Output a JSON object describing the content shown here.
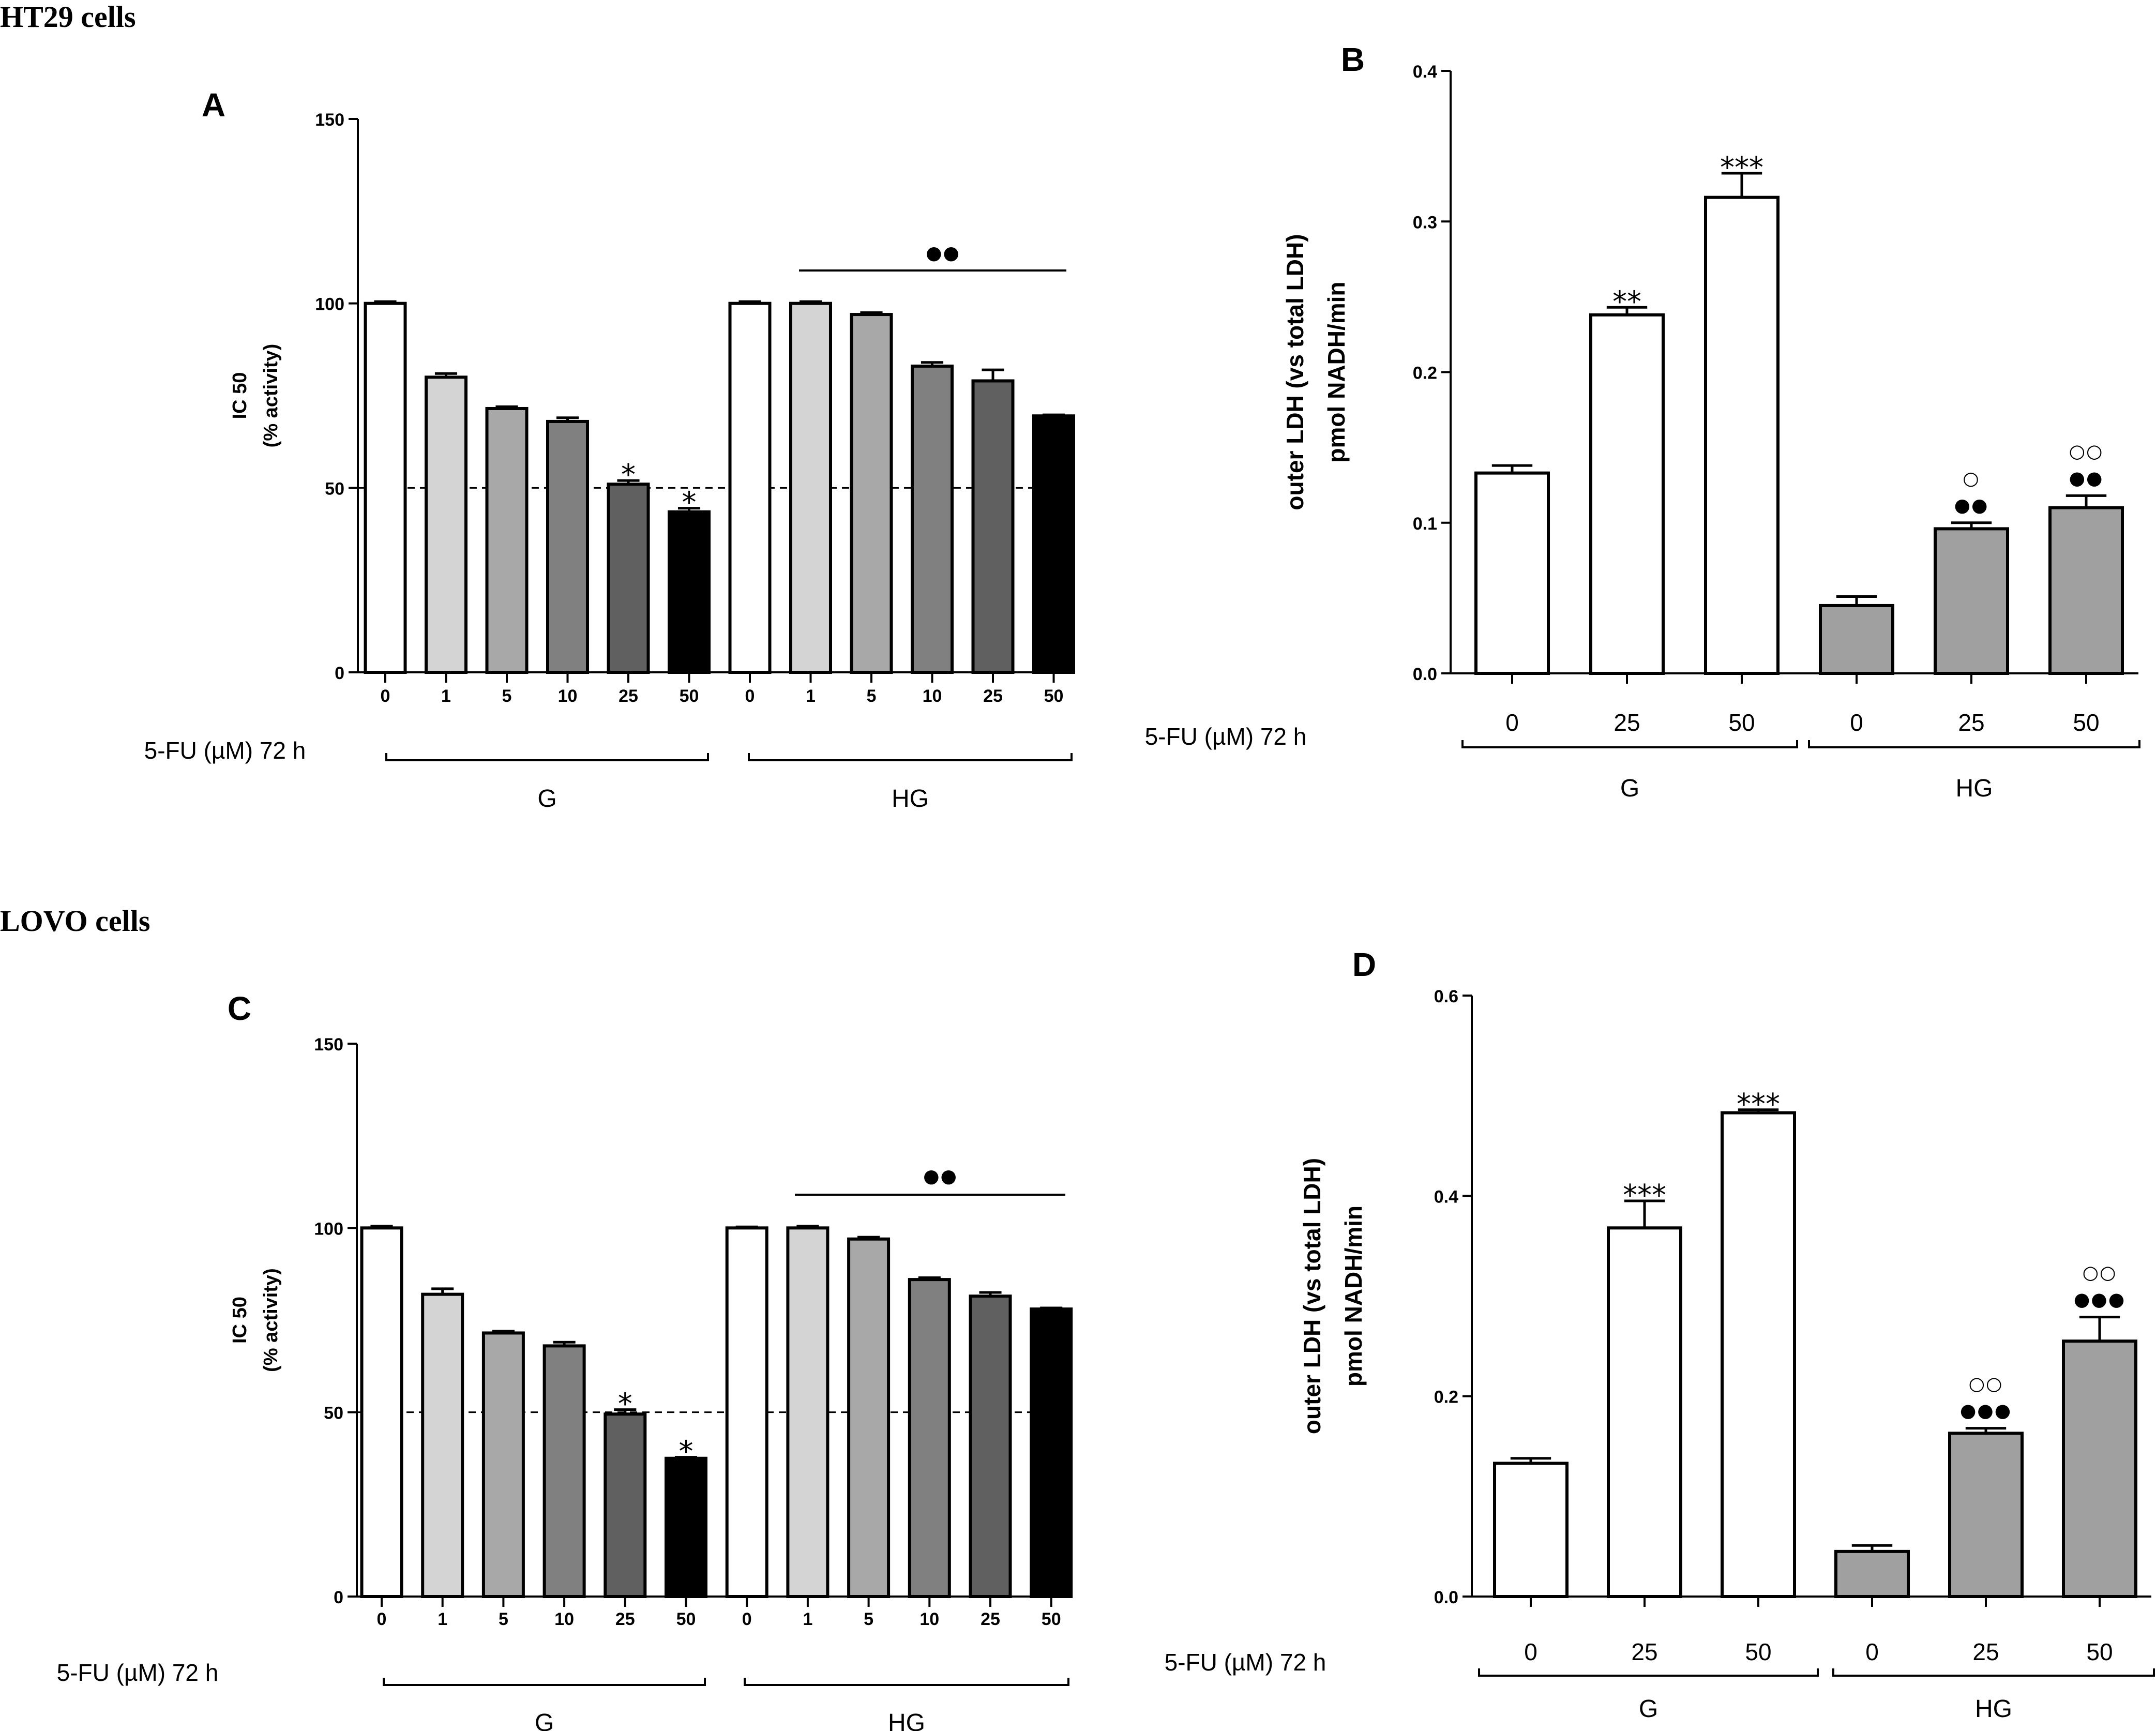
{
  "sections": [
    {
      "title": "HT29 cells"
    },
    {
      "title": "LOVO cells"
    }
  ],
  "chart_data": [
    {
      "panel": "A",
      "type": "bar",
      "ylabel": "IC 50",
      "ylabel2": "(% activity)",
      "xlabel": "5-FU (µM) 72 h",
      "ylim": [
        0,
        150
      ],
      "yticks": [
        "0",
        "50",
        "100",
        "150"
      ],
      "reference_line": 50,
      "categories": [
        "0",
        "1",
        "5",
        "10",
        "25",
        "50",
        "0",
        "1",
        "5",
        "10",
        "25",
        "50"
      ],
      "values": [
        100,
        80,
        71.5,
        68,
        51,
        43.5,
        100,
        100,
        97,
        83,
        79,
        69.5
      ],
      "errors": [
        0.5,
        1,
        0.5,
        1,
        1,
        1,
        0.5,
        0.5,
        0.5,
        1,
        3,
        0.3
      ],
      "fills": [
        "#ffffff",
        "#d4d4d4",
        "#a8a8a8",
        "#808080",
        "#606060",
        "#000000",
        "#ffffff",
        "#d4d4d4",
        "#a8a8a8",
        "#808080",
        "#606060",
        "#000000"
      ],
      "annotations": [
        "",
        "",
        "",
        "",
        "*",
        "*",
        "",
        "",
        "",
        "",
        "",
        ""
      ],
      "bracket_mark": "●●",
      "groups": [
        "G",
        "HG"
      ]
    },
    {
      "panel": "B",
      "type": "bar",
      "ylabel": "outer LDH (vs total LDH)",
      "ylabel2": "pmol NADH/min",
      "xlabel": "5-FU (µM) 72 h",
      "ylim": [
        0,
        0.4
      ],
      "yticks": [
        "0.0",
        "0.1",
        "0.2",
        "0.3",
        "0.4"
      ],
      "categories": [
        "0",
        "25",
        "50",
        "0",
        "25",
        "50"
      ],
      "values": [
        0.133,
        0.238,
        0.316,
        0.045,
        0.096,
        0.11
      ],
      "errors": [
        0.005,
        0.005,
        0.016,
        0.006,
        0.004,
        0.008
      ],
      "fills": [
        "#ffffff",
        "#ffffff",
        "#ffffff",
        "#a0a0a0",
        "#a0a0a0",
        "#a0a0a0"
      ],
      "annotations": [
        "",
        "**",
        "***",
        "",
        "●●",
        "●●"
      ],
      "annotations2": [
        "",
        "",
        "",
        "",
        "○",
        "○○"
      ],
      "groups": [
        "G",
        "HG"
      ]
    },
    {
      "panel": "C",
      "type": "bar",
      "ylabel": "IC 50",
      "ylabel2": "(% activity)",
      "xlabel": "5-FU (µM) 72 h",
      "ylim": [
        0,
        150
      ],
      "yticks": [
        "0",
        "50",
        "100",
        "150"
      ],
      "reference_line": 50,
      "categories": [
        "0",
        "1",
        "5",
        "10",
        "25",
        "50",
        "0",
        "1",
        "5",
        "10",
        "25",
        "50"
      ],
      "values": [
        100,
        82,
        71.5,
        68,
        49.5,
        37.5,
        100,
        100,
        97,
        86,
        81.5,
        78
      ],
      "errors": [
        0.5,
        1.5,
        0.5,
        1,
        1.2,
        0.3,
        0.3,
        0.5,
        0.5,
        0.5,
        1,
        0.3
      ],
      "fills": [
        "#ffffff",
        "#d4d4d4",
        "#a8a8a8",
        "#808080",
        "#606060",
        "#000000",
        "#ffffff",
        "#d4d4d4",
        "#a8a8a8",
        "#808080",
        "#606060",
        "#000000"
      ],
      "annotations": [
        "",
        "",
        "",
        "",
        "*",
        "*",
        "",
        "",
        "",
        "",
        "",
        ""
      ],
      "bracket_mark": "●●",
      "groups": [
        "G",
        "HG"
      ]
    },
    {
      "panel": "D",
      "type": "bar",
      "ylabel": "outer LDH (vs total LDH)",
      "ylabel2": "pmol NADH/min",
      "xlabel": "5-FU (µM) 72 h",
      "ylim": [
        0,
        0.6
      ],
      "yticks": [
        "0.0",
        "0.2",
        "0.4",
        "0.6"
      ],
      "categories": [
        "0",
        "25",
        "50",
        "0",
        "25",
        "50"
      ],
      "values": [
        0.133,
        0.368,
        0.483,
        0.045,
        0.163,
        0.255
      ],
      "errors": [
        0.005,
        0.027,
        0.003,
        0.006,
        0.005,
        0.024
      ],
      "fills": [
        "#ffffff",
        "#ffffff",
        "#ffffff",
        "#a0a0a0",
        "#a0a0a0",
        "#a0a0a0"
      ],
      "annotations": [
        "",
        "***",
        "***",
        "",
        "●●●",
        "●●●"
      ],
      "annotations2": [
        "",
        "",
        "",
        "",
        "○○",
        "○○"
      ],
      "groups": [
        "G",
        "HG"
      ]
    }
  ]
}
